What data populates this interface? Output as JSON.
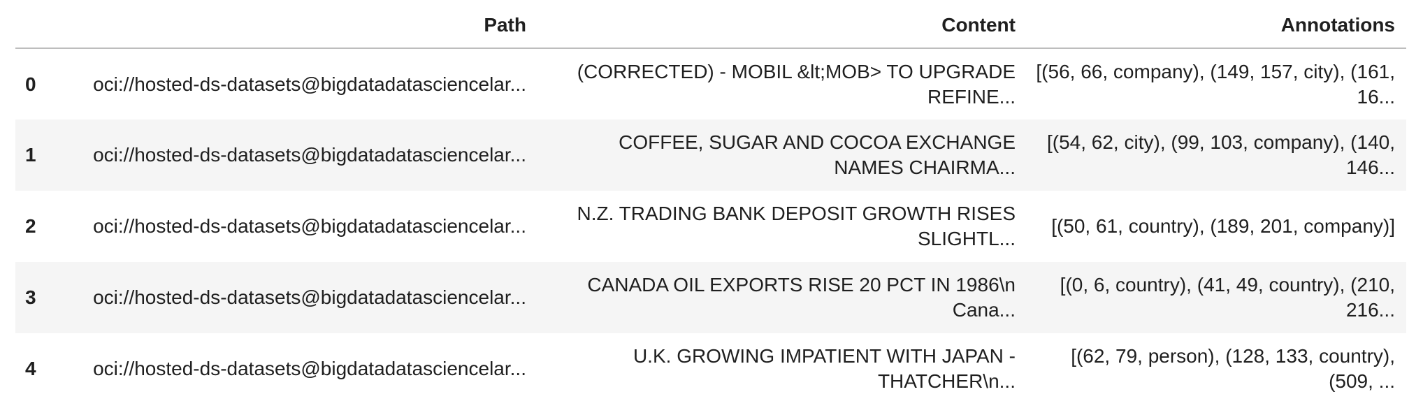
{
  "table": {
    "columns": {
      "index": "",
      "path": "Path",
      "content": "Content",
      "annotations": "Annotations"
    },
    "rows": [
      {
        "index": "0",
        "path": "oci://hosted-ds-datasets@bigdatadatasciencelar...",
        "content": "(CORRECTED) - MOBIL &lt;MOB> TO UPGRADE REFINE...",
        "annotations": "[(56, 66, company), (149, 157, city), (161, 16..."
      },
      {
        "index": "1",
        "path": "oci://hosted-ds-datasets@bigdatadatasciencelar...",
        "content": "COFFEE, SUGAR AND COCOA EXCHANGE NAMES CHAIRMA...",
        "annotations": "[(54, 62, city), (99, 103, company), (140, 146..."
      },
      {
        "index": "2",
        "path": "oci://hosted-ds-datasets@bigdatadatasciencelar...",
        "content": "N.Z. TRADING BANK DEPOSIT GROWTH RISES SLIGHTL...",
        "annotations": "[(50, 61, country), (189, 201, company)]"
      },
      {
        "index": "3",
        "path": "oci://hosted-ds-datasets@bigdatadatasciencelar...",
        "content": "CANADA OIL EXPORTS RISE 20 PCT IN 1986\\n Cana...",
        "annotations": "[(0, 6, country), (41, 49, country), (210, 216..."
      },
      {
        "index": "4",
        "path": "oci://hosted-ds-datasets@bigdatadatasciencelar...",
        "content": "U.K. GROWING IMPATIENT WITH JAPAN - THATCHER\\n...",
        "annotations": "[(62, 79, person), (128, 133, country), (509, ..."
      }
    ]
  }
}
